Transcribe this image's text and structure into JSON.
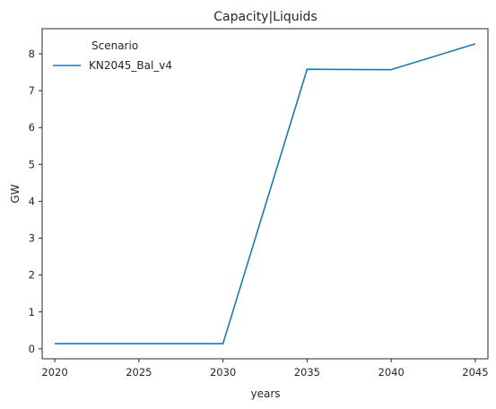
{
  "chart_data": {
    "type": "line",
    "title": "Capacity|Liquids",
    "xlabel": "years",
    "ylabel": "GW",
    "x": [
      2020,
      2025,
      2030,
      2035,
      2040,
      2045
    ],
    "xticks": [
      2020,
      2025,
      2030,
      2035,
      2040,
      2045
    ],
    "yticks": [
      0,
      1,
      2,
      3,
      4,
      5,
      6,
      7,
      8
    ],
    "xlim": [
      2019.25,
      2045.75
    ],
    "ylim": [
      -0.27,
      8.68
    ],
    "grid": false,
    "legend": {
      "placement": "upper-left",
      "title": "Scenario"
    },
    "series": [
      {
        "name": "KN2045_Bal_v4",
        "color": "#1f77b4",
        "values": [
          0.14,
          0.14,
          0.14,
          7.58,
          7.57,
          8.27
        ]
      }
    ]
  }
}
